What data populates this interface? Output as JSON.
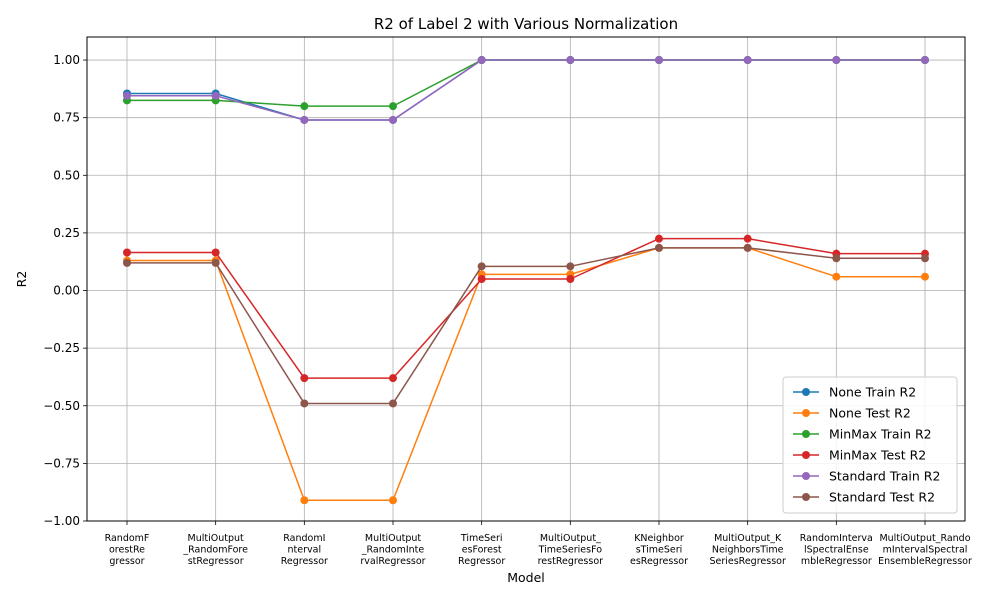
{
  "chart_data": {
    "type": "line",
    "title": "R2 of Label 2 with Various Normalization",
    "xlabel": "Model",
    "ylabel": "R2",
    "ylim": [
      -1.0,
      1.1
    ],
    "yticks": [
      -1.0,
      -0.75,
      -0.5,
      -0.25,
      0.0,
      0.25,
      0.5,
      0.75,
      1.0
    ],
    "ytick_labels": [
      "−1.00",
      "−0.75",
      "−0.50",
      "−0.25",
      "0.00",
      "0.25",
      "0.50",
      "0.75",
      "1.00"
    ],
    "grid": true,
    "legend_position": "lower-right",
    "categories": [
      "RandomForestRegressor",
      "MultiOutput_RandomForestRegressor",
      "RandomIntervalRegressor",
      "MultiOutput_RandomIntervalRegressor",
      "TimeSeriesForestRegressor",
      "MultiOutput_TimeSeriesForestRegressor",
      "KNeighborsTimeSeriesRegressor",
      "MultiOutput_KNeighborsTimeSeriesRegressor",
      "RandomIntervalSpectralEnsembleRegressor",
      "MultiOutput_RandomIntervalSpectralEnsembleRegressor"
    ],
    "category_tick_lines": [
      [
        "RandomF",
        "orestRe",
        "gressor"
      ],
      [
        "MultiOutput",
        "_RandomFore",
        "stRegressor"
      ],
      [
        "RandomI",
        "nterval",
        "Regressor"
      ],
      [
        "MultiOutput",
        "_RandomInte",
        "rvalRegressor"
      ],
      [
        "TimeSeri",
        "esForest",
        "Regressor"
      ],
      [
        "MultiOutput_",
        "TimeSeriesFo",
        "restRegressor"
      ],
      [
        "KNeighbor",
        "sTimeSeri",
        "esRegressor"
      ],
      [
        "MultiOutput_K",
        "NeighborsTime",
        "SeriesRegressor"
      ],
      [
        "RandomInterva",
        "lSpectralEnse",
        "mbleRegressor"
      ],
      [
        "MultiOutput_Rando",
        "mIntervalSpectral",
        "EnsembleRegressor"
      ]
    ],
    "series": [
      {
        "name": "None Train R2",
        "color": "#1f77b4",
        "values": [
          0.855,
          0.855,
          0.74,
          0.74,
          1.0,
          1.0,
          1.0,
          1.0,
          1.0,
          1.0
        ]
      },
      {
        "name": "None Test R2",
        "color": "#ff7f0e",
        "values": [
          0.13,
          0.13,
          -0.91,
          -0.91,
          0.07,
          0.07,
          0.185,
          0.185,
          0.06,
          0.06
        ]
      },
      {
        "name": "MinMax Train R2",
        "color": "#2ca02c",
        "values": [
          0.825,
          0.825,
          0.8,
          0.8,
          1.0,
          1.0,
          1.0,
          1.0,
          1.0,
          1.0
        ]
      },
      {
        "name": "MinMax Test R2",
        "color": "#d62728",
        "values": [
          0.165,
          0.165,
          -0.38,
          -0.38,
          0.05,
          0.05,
          0.225,
          0.225,
          0.16,
          0.16
        ]
      },
      {
        "name": "Standard Train R2",
        "color": "#9467bd",
        "values": [
          0.845,
          0.845,
          0.74,
          0.74,
          1.0,
          1.0,
          1.0,
          1.0,
          1.0,
          1.0
        ]
      },
      {
        "name": "Standard Test R2",
        "color": "#8c564b",
        "values": [
          0.12,
          0.12,
          -0.49,
          -0.49,
          0.105,
          0.105,
          0.185,
          0.185,
          0.14,
          0.14
        ]
      }
    ]
  }
}
